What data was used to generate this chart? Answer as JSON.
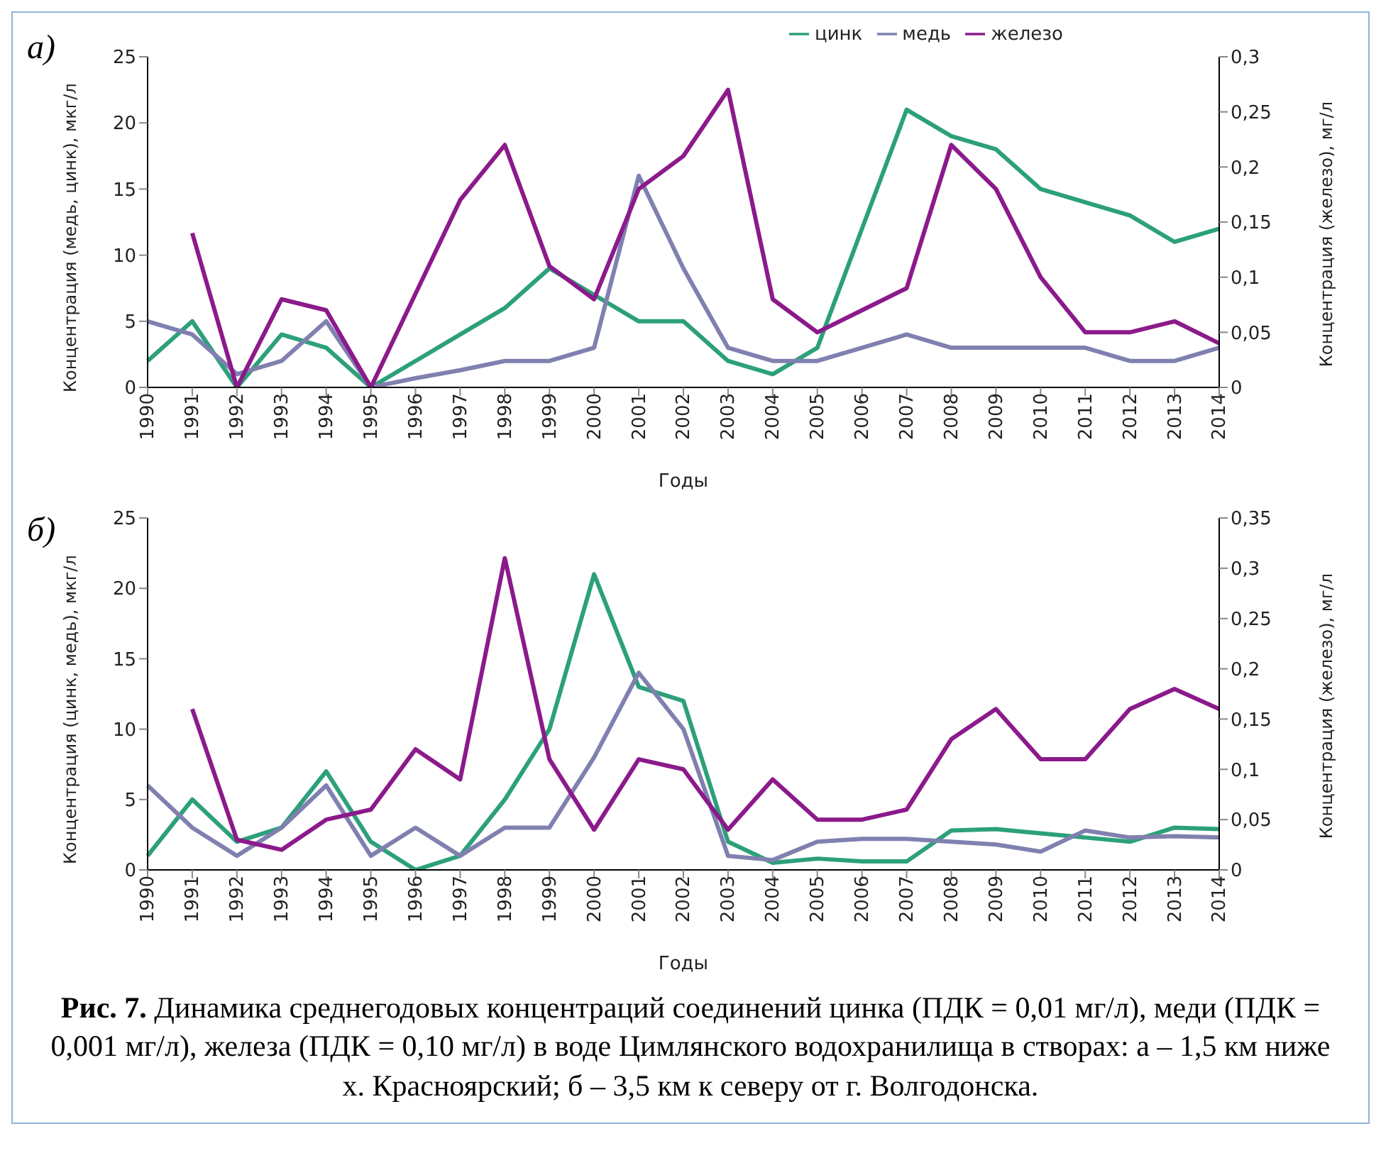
{
  "chart_data": [
    {
      "type": "line",
      "annotations": [
        "а)"
      ],
      "xlabel": "Годы",
      "ylabel": "Концентрация (медь, цинк), мкг/л",
      "y2label": "Концентрация (железо), мг/л",
      "categories": [
        "1990",
        "1991",
        "1992",
        "1993",
        "1994",
        "1995",
        "1996",
        "1997",
        "1998",
        "1999",
        "2000",
        "2001",
        "2002",
        "2003",
        "2004",
        "2005",
        "2006",
        "2007",
        "2008",
        "2009",
        "2010",
        "2011",
        "2012",
        "2013",
        "2014"
      ],
      "series": [
        {
          "name": "цинк",
          "color": "#2ca07a",
          "values": [
            2,
            5,
            0,
            4,
            3,
            0,
            2,
            4,
            6,
            9,
            7,
            5,
            5,
            2,
            1,
            3,
            12,
            21,
            19,
            18,
            15,
            14,
            13,
            11,
            12
          ]
        },
        {
          "name": "медь",
          "color": "#8080b0",
          "values": [
            5,
            4,
            1,
            2,
            5,
            0,
            0.7,
            1.3,
            2,
            2,
            3,
            16,
            9,
            3,
            2,
            2,
            3,
            4,
            3,
            3,
            3,
            3,
            2,
            2,
            3
          ]
        },
        {
          "name": "железо",
          "color": "#8b1a8b",
          "axis": "y2",
          "values": [
            null,
            0.14,
            0,
            0.08,
            0.07,
            0,
            0.085,
            0.17,
            0.22,
            0.11,
            0.08,
            0.18,
            0.21,
            0.27,
            0.08,
            0.05,
            0.07,
            0.09,
            0.22,
            0.18,
            0.1,
            0.05,
            0.05,
            0.06,
            0.04
          ]
        }
      ],
      "ylim": [
        0,
        25
      ],
      "yticks": [
        0,
        5,
        10,
        15,
        20,
        25
      ],
      "y2lim": [
        0,
        0.3
      ],
      "y2ticks": [
        {
          "value": 0,
          "label": "0"
        },
        {
          "value": 0.05,
          "label": "0,05"
        },
        {
          "value": 0.1,
          "label": "0,1"
        },
        {
          "value": 0.15,
          "label": "0,15"
        },
        {
          "value": 0.2,
          "label": "0,2"
        },
        {
          "value": 0.25,
          "label": "0,25"
        },
        {
          "value": 0.3,
          "label": "0,3"
        }
      ],
      "grid": false,
      "legend": "top right",
      "marker": "none",
      "line_style": "solid"
    },
    {
      "type": "line",
      "annotations": [
        "б)",
        "Рис. 7.",
        "Динамика среднегодовых концентраций соединений цинка (ПДК = 0,01 мг/л), меди (ПДК = 0,001 мг/л), железа (ПДК = 0,10 мг/л) в воде Цимлянского водохранилища в створах: а – 1,5 км ниже х. Красноярский; б – 3,5 км к северу от г. Волгодонска."
      ],
      "xlabel": "Годы",
      "ylabel": "Концентрация (цинк, медь), мкг/л",
      "y2label": "Концентрация (железо), мг/л",
      "categories": [
        "1990",
        "1991",
        "1992",
        "1993",
        "1994",
        "1995",
        "1996",
        "1997",
        "1998",
        "1999",
        "2000",
        "2001",
        "2002",
        "2003",
        "2004",
        "2005",
        "2006",
        "2007",
        "2008",
        "2009",
        "2010",
        "2011",
        "2012",
        "2013",
        "2014"
      ],
      "series": [
        {
          "color": "#2ca07a",
          "values": [
            1,
            5,
            2,
            3,
            7,
            2,
            0,
            1,
            5,
            10,
            21,
            13,
            12,
            2,
            0.5,
            0.8,
            0.6,
            0.6,
            2.8,
            2.9,
            2.6,
            2.3,
            2,
            3,
            2.9
          ]
        },
        {
          "color": "#8080b0",
          "values": [
            6,
            3,
            1,
            3,
            6,
            1,
            3,
            1,
            3,
            3,
            8,
            14,
            10,
            1,
            0.7,
            2,
            2.2,
            2.2,
            2,
            1.8,
            1.3,
            2.8,
            2.3,
            2.4,
            2.3
          ]
        },
        {
          "color": "#8b1a8b",
          "axis": "y2",
          "values": [
            null,
            0.16,
            0.03,
            0.02,
            0.05,
            0.06,
            0.12,
            0.09,
            0.31,
            0.11,
            0.04,
            0.11,
            0.1,
            0.04,
            0.09,
            0.05,
            0.05,
            0.06,
            0.13,
            0.16,
            0.11,
            0.11,
            0.16,
            0.18,
            0.16
          ]
        }
      ],
      "ylim": [
        0,
        25
      ],
      "yticks": [
        0,
        5,
        10,
        15,
        20,
        25
      ],
      "y2lim": [
        0,
        0.35
      ],
      "y2ticks": [
        {
          "value": 0,
          "label": "0"
        },
        {
          "value": 0.05,
          "label": "0,05"
        },
        {
          "value": 0.1,
          "label": "0,1"
        },
        {
          "value": 0.15,
          "label": "0,15"
        },
        {
          "value": 0.2,
          "label": "0,2"
        },
        {
          "value": 0.25,
          "label": "0,25"
        },
        {
          "value": 0.3,
          "label": "0,3"
        },
        {
          "value": 0.35,
          "label": "0,35"
        }
      ],
      "grid": false,
      "legend": false,
      "marker": "none",
      "line_style": "solid"
    }
  ]
}
